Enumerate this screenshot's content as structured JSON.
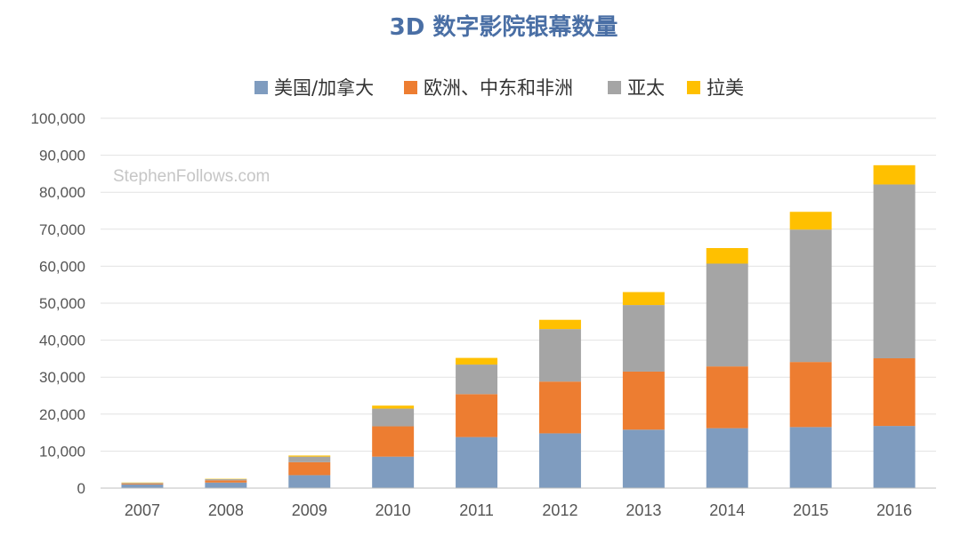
{
  "chart_data": {
    "type": "bar",
    "stacked": true,
    "title": "3D 数字影院银幕数量",
    "watermark": "StephenFollows.com",
    "xlabel": "",
    "ylabel": "",
    "ylim": [
      0,
      100000
    ],
    "yticks": [
      0,
      10000,
      20000,
      30000,
      40000,
      50000,
      60000,
      70000,
      80000,
      90000,
      100000
    ],
    "ytick_labels": [
      "0",
      "10,000",
      "20,000",
      "30,000",
      "40,000",
      "50,000",
      "60,000",
      "70,000",
      "80,000",
      "90,000",
      "100,000"
    ],
    "grid": true,
    "legend_position": "top-center",
    "categories": [
      "2007",
      "2008",
      "2009",
      "2010",
      "2011",
      "2012",
      "2013",
      "2014",
      "2015",
      "2016"
    ],
    "series": [
      {
        "name": "美国/加拿大",
        "color": "#7f9cbf",
        "values": [
          1000,
          1500,
          3500,
          8500,
          13800,
          14800,
          15800,
          16200,
          16500,
          16800
        ]
      },
      {
        "name": "欧洲、中东和非洲",
        "color": "#ed7d31",
        "values": [
          200,
          600,
          3500,
          8200,
          11600,
          14000,
          15700,
          16700,
          17600,
          18300
        ]
      },
      {
        "name": "亚太",
        "color": "#a5a5a5",
        "values": [
          200,
          300,
          1500,
          4800,
          8000,
          14200,
          18000,
          27800,
          35800,
          47000
        ]
      },
      {
        "name": "拉美",
        "color": "#ffc000",
        "values": [
          100,
          100,
          300,
          800,
          1800,
          2500,
          3500,
          4200,
          4800,
          5200
        ]
      }
    ]
  }
}
